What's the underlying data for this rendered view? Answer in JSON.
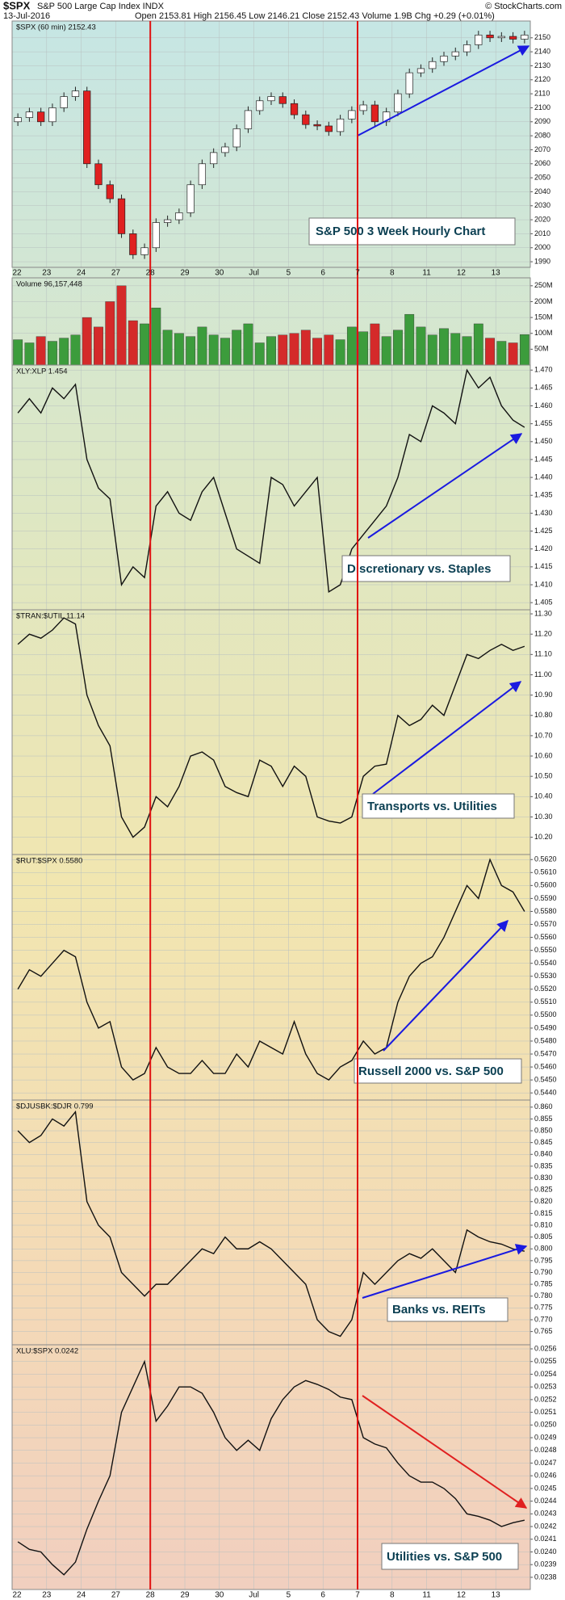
{
  "header": {
    "symbol": "$SPX",
    "name": "S&P 500 Large Cap Index INDX",
    "date": "13-Jul-2016",
    "quote": "Open 2153.81  High 2156.45  Low 2146.21  Close 2152.43  Volume 1.9B  Chg +0.29 (+0.01%)",
    "copyright": "© StockCharts.com"
  },
  "chart_data": [
    {
      "type": "candlestick",
      "title": "$SPX (60 min) 2152.43",
      "annotation": "S&P 500 3 Week Hourly Chart",
      "categories": [
        "22",
        null,
        null,
        "23",
        null,
        null,
        "24",
        null,
        null,
        "27",
        null,
        null,
        "28",
        null,
        null,
        "29",
        null,
        null,
        "30",
        null,
        null,
        "Jul",
        null,
        null,
        "5",
        null,
        null,
        "6",
        null,
        null,
        "7",
        null,
        null,
        "8",
        null,
        null,
        "11",
        null,
        null,
        "12",
        null,
        null,
        "13",
        null,
        null
      ],
      "open": [
        2090,
        2093,
        2097,
        2090,
        2100,
        2108,
        2112,
        2060,
        2045,
        2035,
        2010,
        1995,
        2000,
        2018,
        2020,
        2025,
        2045,
        2060,
        2068,
        2072,
        2085,
        2098,
        2105,
        2108,
        2103,
        2095,
        2088,
        2087,
        2083,
        2092,
        2098,
        2102,
        2090,
        2097,
        2110,
        2125,
        2128,
        2133,
        2137,
        2140,
        2145,
        2152,
        2150,
        2151,
        2149
      ],
      "high": [
        2096,
        2100,
        2100,
        2103,
        2111,
        2115,
        2115,
        2063,
        2048,
        2038,
        2013,
        2003,
        2021,
        2023,
        2028,
        2048,
        2063,
        2071,
        2075,
        2088,
        2101,
        2108,
        2111,
        2111,
        2106,
        2098,
        2091,
        2090,
        2095,
        2101,
        2105,
        2105,
        2100,
        2113,
        2128,
        2131,
        2136,
        2140,
        2143,
        2148,
        2155,
        2155,
        2154,
        2154,
        2155
      ],
      "low": [
        2087,
        2090,
        2087,
        2087,
        2097,
        2105,
        2057,
        2042,
        2032,
        2007,
        1992,
        1992,
        1997,
        2015,
        2017,
        2022,
        2042,
        2057,
        2065,
        2069,
        2082,
        2095,
        2102,
        2100,
        2092,
        2085,
        2084,
        2080,
        2080,
        2089,
        2095,
        2087,
        2087,
        2094,
        2107,
        2122,
        2125,
        2130,
        2134,
        2137,
        2142,
        2147,
        2147,
        2146,
        2146
      ],
      "close": [
        2093,
        2097,
        2090,
        2100,
        2108,
        2112,
        2060,
        2045,
        2035,
        2010,
        1995,
        2000,
        2018,
        2020,
        2025,
        2045,
        2060,
        2068,
        2072,
        2085,
        2098,
        2105,
        2108,
        2103,
        2095,
        2088,
        2087,
        2083,
        2092,
        2098,
        2102,
        2090,
        2097,
        2110,
        2125,
        2128,
        2133,
        2137,
        2140,
        2145,
        2152,
        2150,
        2151,
        2149,
        2152
      ],
      "up_color": "#ffffff",
      "down_color": "#e02020",
      "ylim": [
        1986,
        2162
      ],
      "yticks": [
        1990,
        2000,
        2010,
        2020,
        2030,
        2040,
        2050,
        2060,
        2070,
        2080,
        2090,
        2100,
        2110,
        2120,
        2130,
        2140,
        2150
      ],
      "grid": true
    },
    {
      "type": "bar",
      "title": "Volume 96,157,448",
      "values": [
        80000000,
        70000000,
        90000000,
        75000000,
        85000000,
        95000000,
        150000000,
        120000000,
        200000000,
        250000000,
        140000000,
        130000000,
        180000000,
        110000000,
        100000000,
        90000000,
        120000000,
        95000000,
        85000000,
        110000000,
        130000000,
        70000000,
        90000000,
        95000000,
        100000000,
        110000000,
        85000000,
        95000000,
        80000000,
        120000000,
        105000000,
        130000000,
        90000000,
        110000000,
        160000000,
        120000000,
        95000000,
        115000000,
        100000000,
        90000000,
        130000000,
        85000000,
        75000000,
        70000000,
        96157448
      ],
      "up_color": "#3c9c3c",
      "down_color": "#d42a2a",
      "ylim": [
        0,
        275000000
      ],
      "yticks": [
        {
          "value": 50000000,
          "label": "50M"
        },
        {
          "value": 100000000,
          "label": "100M"
        },
        {
          "value": 150000000,
          "label": "150M"
        },
        {
          "value": 200000000,
          "label": "200M"
        },
        {
          "value": 250000000,
          "label": "250M"
        }
      ],
      "grid": true
    },
    {
      "type": "line",
      "title": "XLY:XLP 1.454",
      "annotation": "Discretionary vs. Staples",
      "values": [
        1.458,
        1.462,
        1.458,
        1.465,
        1.462,
        1.466,
        1.445,
        1.437,
        1.434,
        1.41,
        1.415,
        1.412,
        1.432,
        1.436,
        1.43,
        1.428,
        1.436,
        1.44,
        1.43,
        1.42,
        1.418,
        1.416,
        1.44,
        1.438,
        1.432,
        1.436,
        1.44,
        1.408,
        1.41,
        1.42,
        1.424,
        1.428,
        1.432,
        1.44,
        1.452,
        1.45,
        1.46,
        1.458,
        1.455,
        1.47,
        1.465,
        1.468,
        1.46,
        1.456,
        1.454
      ],
      "color": "#111111",
      "ylim": [
        1.403,
        1.4714
      ],
      "yticks": [
        {
          "value": 1.405,
          "label": "1.405"
        },
        {
          "value": 1.41,
          "label": "1.410"
        },
        {
          "value": 1.415,
          "label": "1.415"
        },
        {
          "value": 1.42,
          "label": "1.420"
        },
        {
          "value": 1.425,
          "label": "1.425"
        },
        {
          "value": 1.43,
          "label": "1.430"
        },
        {
          "value": 1.435,
          "label": "1.435"
        },
        {
          "value": 1.44,
          "label": "1.440"
        },
        {
          "value": 1.445,
          "label": "1.445"
        },
        {
          "value": 1.45,
          "label": "1.450"
        },
        {
          "value": 1.455,
          "label": "1.455"
        },
        {
          "value": 1.46,
          "label": "1.460"
        },
        {
          "value": 1.465,
          "label": "1.465"
        },
        {
          "value": 1.47,
          "label": "1.470"
        }
      ],
      "grid": true
    },
    {
      "type": "line",
      "title": "$TRAN:$UTIL 11.14",
      "annotation": "Transports vs. Utilities",
      "values": [
        11.15,
        11.2,
        11.18,
        11.22,
        11.28,
        11.25,
        10.9,
        10.75,
        10.65,
        10.3,
        10.2,
        10.25,
        10.4,
        10.35,
        10.45,
        10.6,
        10.62,
        10.58,
        10.45,
        10.42,
        10.4,
        10.58,
        10.55,
        10.45,
        10.55,
        10.5,
        10.3,
        10.28,
        10.27,
        10.3,
        10.5,
        10.55,
        10.56,
        10.8,
        10.75,
        10.78,
        10.85,
        10.8,
        10.95,
        11.1,
        11.08,
        11.12,
        11.15,
        11.12,
        11.14
      ],
      "color": "#111111",
      "ylim": [
        10.115,
        11.32
      ],
      "yticks": [
        {
          "value": 10.2,
          "label": "10.20"
        },
        {
          "value": 10.3,
          "label": "10.30"
        },
        {
          "value": 10.4,
          "label": "10.40"
        },
        {
          "value": 10.5,
          "label": "10.50"
        },
        {
          "value": 10.6,
          "label": "10.60"
        },
        {
          "value": 10.7,
          "label": "10.70"
        },
        {
          "value": 10.8,
          "label": "10.80"
        },
        {
          "value": 10.9,
          "label": "10.90"
        },
        {
          "value": 11.0,
          "label": "11.00"
        },
        {
          "value": 11.1,
          "label": "11.10"
        },
        {
          "value": 11.2,
          "label": "11.20"
        },
        {
          "value": 11.3,
          "label": "11.30"
        }
      ],
      "grid": true
    },
    {
      "type": "line",
      "title": "$RUT:$SPX 0.5580",
      "annotation": "Russell 2000 vs. S&P 500",
      "values": [
        0.552,
        0.5535,
        0.553,
        0.554,
        0.555,
        0.5545,
        0.551,
        0.549,
        0.5495,
        0.546,
        0.545,
        0.5455,
        0.5475,
        0.546,
        0.5455,
        0.5455,
        0.5465,
        0.5455,
        0.5455,
        0.547,
        0.546,
        0.548,
        0.5475,
        0.547,
        0.5495,
        0.547,
        0.5455,
        0.545,
        0.546,
        0.5465,
        0.548,
        0.547,
        0.5475,
        0.551,
        0.553,
        0.554,
        0.5545,
        0.556,
        0.558,
        0.56,
        0.559,
        0.562,
        0.56,
        0.5595,
        0.558
      ],
      "color": "#111111",
      "ylim": [
        0.54345,
        0.56239
      ],
      "yticks": [
        {
          "value": 0.544,
          "label": "0.5440"
        },
        {
          "value": 0.545,
          "label": "0.5450"
        },
        {
          "value": 0.546,
          "label": "0.5460"
        },
        {
          "value": 0.547,
          "label": "0.5470"
        },
        {
          "value": 0.548,
          "label": "0.5480"
        },
        {
          "value": 0.549,
          "label": "0.5490"
        },
        {
          "value": 0.55,
          "label": "0.5500"
        },
        {
          "value": 0.551,
          "label": "0.5510"
        },
        {
          "value": 0.552,
          "label": "0.5520"
        },
        {
          "value": 0.553,
          "label": "0.5530"
        },
        {
          "value": 0.554,
          "label": "0.5540"
        },
        {
          "value": 0.555,
          "label": "0.5550"
        },
        {
          "value": 0.556,
          "label": "0.5560"
        },
        {
          "value": 0.557,
          "label": "0.5570"
        },
        {
          "value": 0.558,
          "label": "0.5580"
        },
        {
          "value": 0.559,
          "label": "0.5590"
        },
        {
          "value": 0.56,
          "label": "0.5600"
        },
        {
          "value": 0.561,
          "label": "0.5610"
        },
        {
          "value": 0.562,
          "label": "0.5620"
        }
      ],
      "grid": true
    },
    {
      "type": "line",
      "title": "$DJUSBK:$DJR 0.799",
      "annotation": "Banks vs. REITs",
      "values": [
        0.85,
        0.845,
        0.848,
        0.855,
        0.852,
        0.858,
        0.82,
        0.81,
        0.805,
        0.79,
        0.785,
        0.78,
        0.785,
        0.785,
        0.79,
        0.795,
        0.8,
        0.798,
        0.805,
        0.8,
        0.8,
        0.803,
        0.8,
        0.795,
        0.79,
        0.785,
        0.77,
        0.765,
        0.763,
        0.77,
        0.79,
        0.785,
        0.79,
        0.795,
        0.798,
        0.796,
        0.8,
        0.795,
        0.79,
        0.808,
        0.805,
        0.803,
        0.802,
        0.8,
        0.799
      ],
      "color": "#111111",
      "ylim": [
        0.7594,
        0.863
      ],
      "yticks": [
        {
          "value": 0.765,
          "label": "0.765"
        },
        {
          "value": 0.77,
          "label": "0.770"
        },
        {
          "value": 0.775,
          "label": "0.775"
        },
        {
          "value": 0.78,
          "label": "0.780"
        },
        {
          "value": 0.785,
          "label": "0.785"
        },
        {
          "value": 0.79,
          "label": "0.790"
        },
        {
          "value": 0.795,
          "label": "0.795"
        },
        {
          "value": 0.8,
          "label": "0.800"
        },
        {
          "value": 0.805,
          "label": "0.805"
        },
        {
          "value": 0.81,
          "label": "0.810"
        },
        {
          "value": 0.815,
          "label": "0.815"
        },
        {
          "value": 0.82,
          "label": "0.820"
        },
        {
          "value": 0.825,
          "label": "0.825"
        },
        {
          "value": 0.83,
          "label": "0.830"
        },
        {
          "value": 0.835,
          "label": "0.835"
        },
        {
          "value": 0.84,
          "label": "0.840"
        },
        {
          "value": 0.845,
          "label": "0.845"
        },
        {
          "value": 0.85,
          "label": "0.850"
        },
        {
          "value": 0.855,
          "label": "0.855"
        },
        {
          "value": 0.86,
          "label": "0.860"
        }
      ],
      "grid": true
    },
    {
      "type": "line",
      "title": "XLU:$SPX 0.0242",
      "annotation": "Utilities vs. S&P 500",
      "values": [
        0.02408,
        0.02402,
        0.024,
        0.0239,
        0.02382,
        0.02392,
        0.02418,
        0.0244,
        0.0246,
        0.0251,
        0.0253,
        0.0255,
        0.02503,
        0.02515,
        0.0253,
        0.0253,
        0.02525,
        0.0251,
        0.0249,
        0.0248,
        0.02488,
        0.0248,
        0.02505,
        0.0252,
        0.0253,
        0.02535,
        0.02532,
        0.02528,
        0.02522,
        0.0252,
        0.0249,
        0.02485,
        0.02482,
        0.0247,
        0.0246,
        0.02455,
        0.02455,
        0.0245,
        0.02442,
        0.0243,
        0.02428,
        0.02425,
        0.0242,
        0.02423,
        0.02425
      ],
      "color": "#111111",
      "ylim": [
        0.023704,
        0.025632
      ],
      "yticks": [
        {
          "value": 0.0238,
          "label": "0.0238"
        },
        {
          "value": 0.0239,
          "label": "0.0239"
        },
        {
          "value": 0.024,
          "label": "0.0240"
        },
        {
          "value": 0.0241,
          "label": "0.0241"
        },
        {
          "value": 0.0242,
          "label": "0.0242"
        },
        {
          "value": 0.0243,
          "label": "0.0243"
        },
        {
          "value": 0.0244,
          "label": "0.0244"
        },
        {
          "value": 0.0245,
          "label": "0.0245"
        },
        {
          "value": 0.0246,
          "label": "0.0246"
        },
        {
          "value": 0.0247,
          "label": "0.0247"
        },
        {
          "value": 0.0248,
          "label": "0.0248"
        },
        {
          "value": 0.0249,
          "label": "0.0249"
        },
        {
          "value": 0.025,
          "label": "0.0250"
        },
        {
          "value": 0.0251,
          "label": "0.0251"
        },
        {
          "value": 0.0252,
          "label": "0.0252"
        },
        {
          "value": 0.0253,
          "label": "0.0253"
        },
        {
          "value": 0.0254,
          "label": "0.0254"
        },
        {
          "value": 0.0255,
          "label": "0.0255"
        },
        {
          "value": 0.0256,
          "label": "0.0256"
        }
      ],
      "grid": true
    }
  ]
}
